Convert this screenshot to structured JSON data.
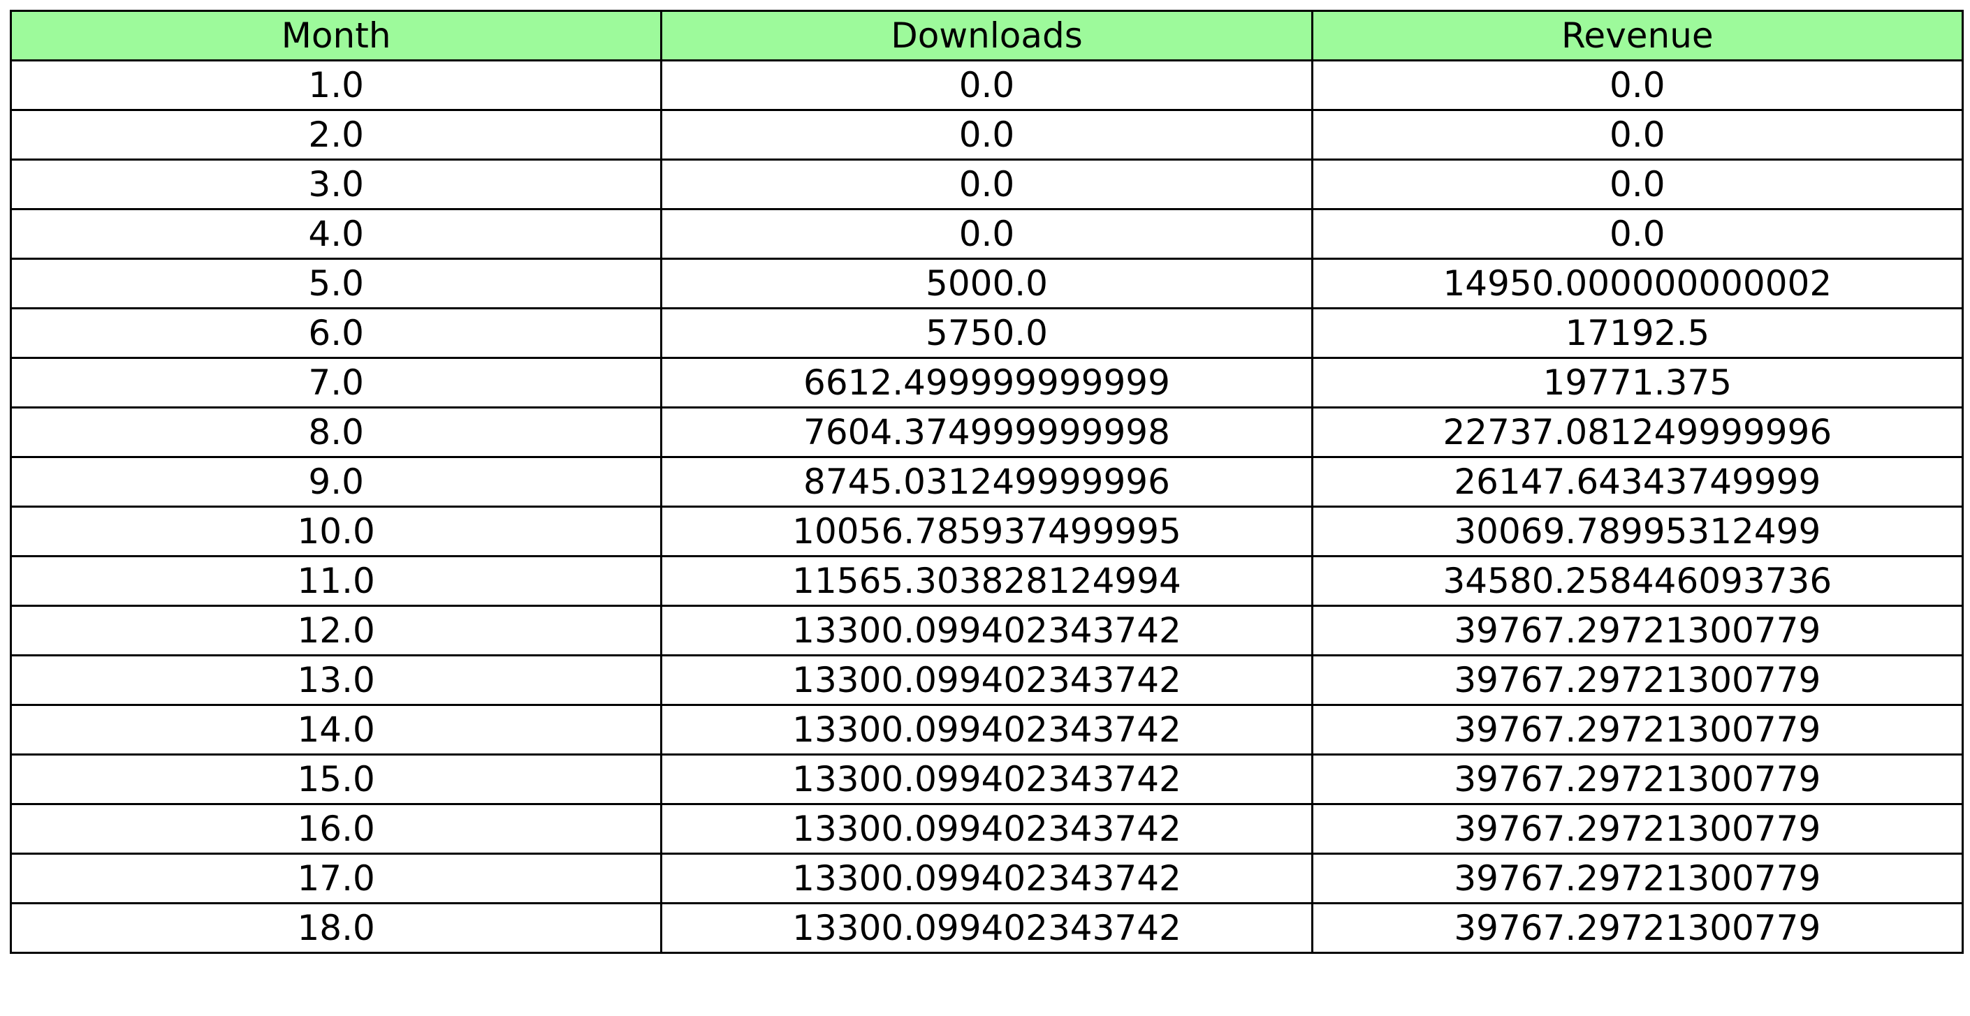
{
  "chart_data": {
    "type": "table",
    "header_color": "#9dfa9b",
    "columns": [
      "Month",
      "Downloads",
      "Revenue"
    ],
    "rows": [
      [
        "1.0",
        "0.0",
        "0.0"
      ],
      [
        "2.0",
        "0.0",
        "0.0"
      ],
      [
        "3.0",
        "0.0",
        "0.0"
      ],
      [
        "4.0",
        "0.0",
        "0.0"
      ],
      [
        "5.0",
        "5000.0",
        "14950.000000000002"
      ],
      [
        "6.0",
        "5750.0",
        "17192.5"
      ],
      [
        "7.0",
        "6612.499999999999",
        "19771.375"
      ],
      [
        "8.0",
        "7604.374999999998",
        "22737.081249999996"
      ],
      [
        "9.0",
        "8745.031249999996",
        "26147.64343749999"
      ],
      [
        "10.0",
        "10056.785937499995",
        "30069.78995312499"
      ],
      [
        "11.0",
        "11565.303828124994",
        "34580.258446093736"
      ],
      [
        "12.0",
        "13300.099402343742",
        "39767.29721300779"
      ],
      [
        "13.0",
        "13300.099402343742",
        "39767.29721300779"
      ],
      [
        "14.0",
        "13300.099402343742",
        "39767.29721300779"
      ],
      [
        "15.0",
        "13300.099402343742",
        "39767.29721300779"
      ],
      [
        "16.0",
        "13300.099402343742",
        "39767.29721300779"
      ],
      [
        "17.0",
        "13300.099402343742",
        "39767.29721300779"
      ],
      [
        "18.0",
        "13300.099402343742",
        "39767.29721300779"
      ]
    ]
  }
}
